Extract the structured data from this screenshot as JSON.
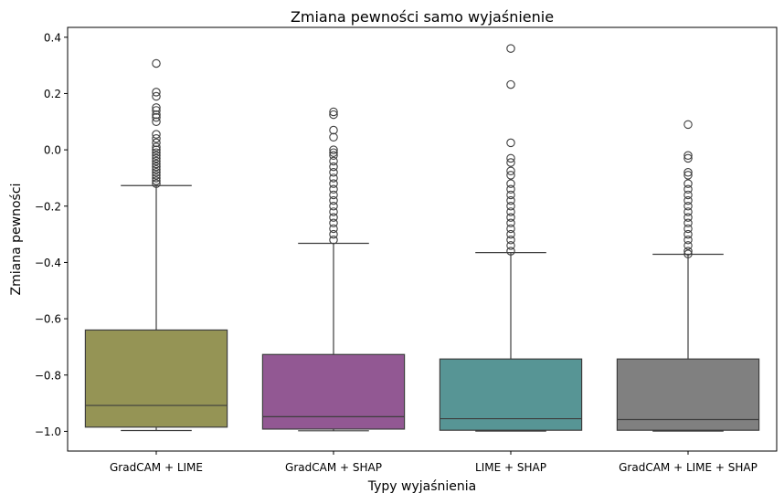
{
  "chart_data": {
    "type": "box",
    "title": "Zmiana pewności samo wyjaśnienie",
    "xlabel": "Typy wyjaśnienia",
    "ylabel": "Zmiana pewności",
    "ylim": [
      -1.07,
      0.435
    ],
    "yticks": [
      -1.0,
      -0.8,
      -0.6,
      -0.4,
      -0.2,
      0.0,
      0.2,
      0.4
    ],
    "ytick_labels": [
      "−1.0",
      "−0.8",
      "−0.6",
      "−0.4",
      "−0.2",
      "0.0",
      "0.2",
      "0.4"
    ],
    "grid": false,
    "categories": [
      "GradCAM + LIME",
      "GradCAM + SHAP",
      "LIME + SHAP",
      "GradCAM + LIME + SHAP"
    ],
    "boxes": [
      {
        "category": "GradCAM + LIME",
        "color": "#959455",
        "whisker_low": -0.997,
        "q1": -0.985,
        "median": -0.908,
        "q3": -0.64,
        "whisker_high": -0.127,
        "outliers": [
          0.307,
          0.205,
          0.19,
          0.15,
          0.14,
          0.125,
          0.115,
          0.1,
          0.055,
          0.04,
          0.025,
          0.01,
          0.0,
          -0.01,
          -0.02,
          -0.03,
          -0.04,
          -0.05,
          -0.06,
          -0.07,
          -0.08,
          -0.09,
          -0.1,
          -0.11,
          -0.12
        ]
      },
      {
        "category": "GradCAM + SHAP",
        "color": "#925893",
        "whisker_low": -0.998,
        "q1": -0.992,
        "median": -0.948,
        "q3": -0.727,
        "whisker_high": -0.332,
        "outliers": [
          0.135,
          0.125,
          0.07,
          0.045,
          0.0,
          -0.01,
          -0.02,
          -0.04,
          -0.06,
          -0.08,
          -0.1,
          -0.12,
          -0.14,
          -0.16,
          -0.18,
          -0.2,
          -0.22,
          -0.24,
          -0.26,
          -0.28,
          -0.3,
          -0.32
        ]
      },
      {
        "category": "LIME + SHAP",
        "color": "#579595",
        "whisker_low": -0.999,
        "q1": -0.996,
        "median": -0.955,
        "q3": -0.743,
        "whisker_high": -0.365,
        "outliers": [
          0.36,
          0.232,
          0.025,
          -0.03,
          -0.045,
          -0.075,
          -0.09,
          -0.12,
          -0.14,
          -0.16,
          -0.18,
          -0.2,
          -0.22,
          -0.24,
          -0.26,
          -0.28,
          -0.3,
          -0.32,
          -0.34,
          -0.36
        ]
      },
      {
        "category": "GradCAM + LIME + SHAP",
        "color": "#808080",
        "whisker_low": -0.999,
        "q1": -0.996,
        "median": -0.958,
        "q3": -0.743,
        "whisker_high": -0.371,
        "outliers": [
          0.09,
          -0.02,
          -0.03,
          -0.08,
          -0.09,
          -0.12,
          -0.14,
          -0.16,
          -0.18,
          -0.2,
          -0.22,
          -0.24,
          -0.26,
          -0.28,
          -0.3,
          -0.32,
          -0.34,
          -0.36,
          -0.37
        ]
      }
    ]
  }
}
